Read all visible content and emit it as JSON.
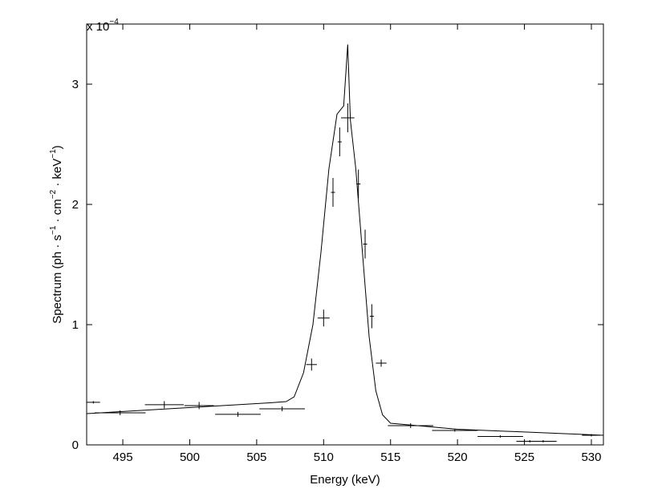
{
  "chart_data": {
    "type": "errorbar",
    "ylabel": [
      "Spectrum (ph · s",
      "−1",
      " · cm",
      "−2",
      " · keV",
      "−1",
      ")"
    ],
    "xlabel": "Energy (keV)",
    "y_multiplier": [
      "x 10",
      "−4"
    ],
    "xlim": [
      492.3,
      530.9
    ],
    "ylim": [
      0,
      3.5
    ],
    "xticks": [
      495,
      500,
      505,
      510,
      515,
      520,
      525,
      530
    ],
    "yticks": [
      0,
      1,
      2,
      3
    ],
    "color": "#000000",
    "series": [
      {
        "type": "scatter",
        "x": [
          492.8,
          494.8,
          498.1,
          500.7,
          503.6,
          506.9,
          509.1,
          510.0,
          510.7,
          511.2,
          511.8,
          512.6,
          513.1,
          513.6,
          514.3,
          516.5,
          519.8,
          523.2,
          525.4,
          526.4,
          530.0
        ],
        "xerr": [
          0.5,
          1.9,
          1.45,
          1.1,
          1.7,
          1.7,
          0.4,
          0.45,
          0.15,
          0.15,
          0.5,
          0.15,
          0.15,
          0.15,
          0.4,
          1.7,
          1.7,
          1.7,
          1.0,
          1.0,
          0.7
        ],
        "values": [
          0.354,
          0.267,
          0.334,
          0.327,
          0.254,
          0.3,
          0.668,
          1.055,
          2.1,
          2.52,
          2.72,
          2.17,
          1.67,
          1.07,
          0.68,
          0.16,
          0.12,
          0.07,
          0.03,
          0.03,
          0.08
        ],
        "yerr": [
          0.01,
          0.02,
          0.03,
          0.03,
          0.02,
          0.02,
          0.05,
          0.07,
          0.12,
          0.12,
          0.12,
          0.12,
          0.12,
          0.1,
          0.03,
          0.02,
          0.01,
          0.01,
          0.01,
          0.01,
          0.01
        ]
      },
      {
        "type": "line",
        "x": [
          492.3,
          506,
          507.2,
          507.8,
          508.5,
          509.2,
          509.8,
          510.4,
          511.0,
          511.5,
          511.8,
          512.0,
          512.4,
          512.9,
          513.4,
          513.9,
          514.4,
          515,
          520,
          530.9
        ],
        "values": [
          0.26,
          0.35,
          0.36,
          0.4,
          0.6,
          1.0,
          1.6,
          2.3,
          2.75,
          2.82,
          3.33,
          2.7,
          2.3,
          1.6,
          0.9,
          0.45,
          0.25,
          0.18,
          0.13,
          0.08
        ]
      }
    ]
  }
}
